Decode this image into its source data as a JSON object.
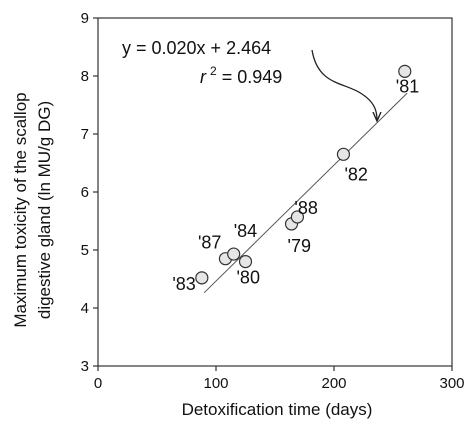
{
  "chart_data": {
    "type": "scatter",
    "xlabel": "Detoxification time (days)",
    "ylabel_lines": [
      "Maximum toxicity of the scallop",
      "digestive gland (ln MU/g DG)"
    ],
    "xlim": [
      0,
      300
    ],
    "ylim": [
      3,
      9
    ],
    "x_ticks": [
      0,
      100,
      200,
      300
    ],
    "y_ticks": [
      3,
      4,
      5,
      6,
      7,
      8,
      9
    ],
    "x_tick_labels": [
      "0",
      "100",
      "200",
      "300"
    ],
    "y_tick_labels": [
      "3",
      "4",
      "5",
      "6",
      "7",
      "8",
      "9"
    ],
    "points": [
      {
        "label": "'83",
        "x": 88,
        "y": 4.52
      },
      {
        "label": "'87",
        "x": 108,
        "y": 4.85
      },
      {
        "label": "'84",
        "x": 115,
        "y": 4.93
      },
      {
        "label": "'80",
        "x": 125,
        "y": 4.8
      },
      {
        "label": "'79",
        "x": 164,
        "y": 5.45
      },
      {
        "label": "'88",
        "x": 169,
        "y": 5.57
      },
      {
        "label": "'82",
        "x": 208,
        "y": 6.65
      },
      {
        "label": "'81",
        "x": 260,
        "y": 8.08
      }
    ],
    "regression": {
      "slope": 0.02,
      "intercept": 2.464,
      "x_range": [
        90,
        262
      ],
      "equation_text": "y = 0.020x + 2.464",
      "r_squared_prefix": "r",
      "r_squared_sup": "2",
      "r_squared_value": " = 0.949"
    },
    "grid": false,
    "legend": "none",
    "colors": {
      "marker_fill": "#e6e6e6",
      "marker_stroke": "#333333",
      "line": "#555555",
      "axis": "#333333"
    }
  }
}
